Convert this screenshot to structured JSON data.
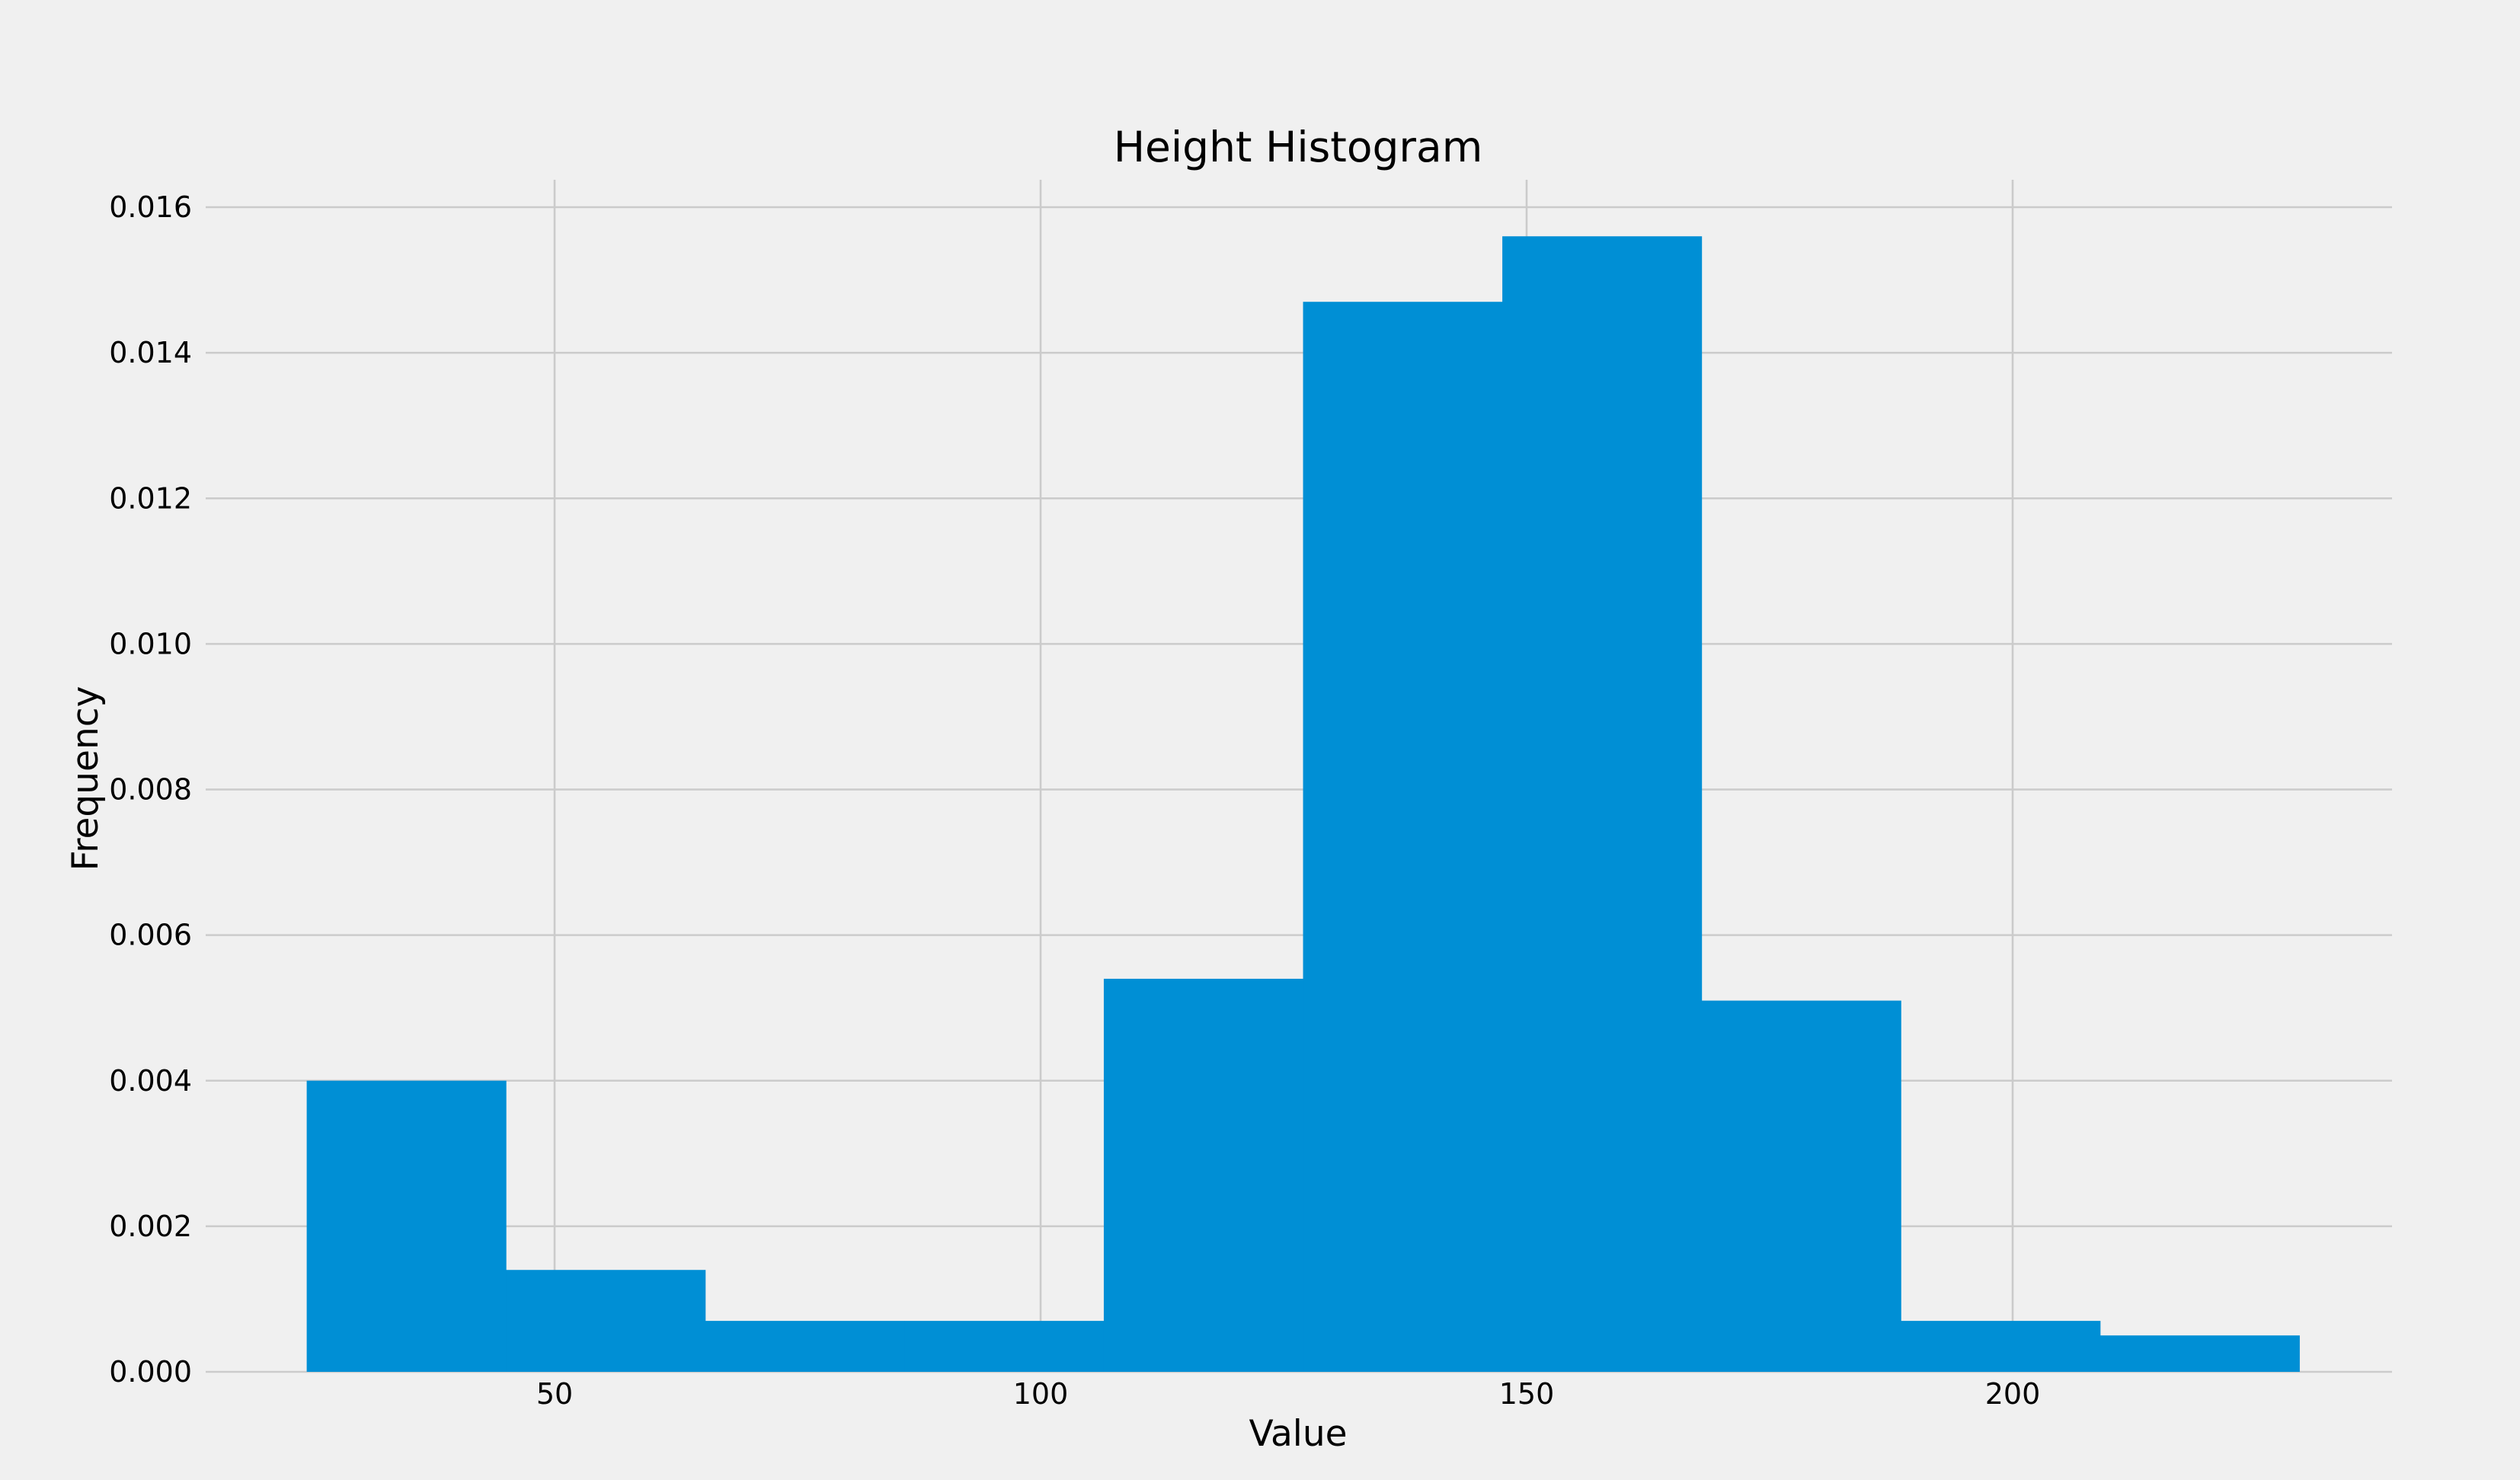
{
  "chart_data": {
    "type": "bar",
    "title": "Height Histogram",
    "xlabel": "Value",
    "ylabel": "Frequency",
    "xlim": [
      14,
      244
    ],
    "ylim": [
      0,
      0.0164
    ],
    "xticks": [
      50,
      100,
      150,
      200
    ],
    "yticks": [
      0.0,
      0.002,
      0.004,
      0.006,
      0.008,
      0.01,
      0.012,
      0.014,
      0.016
    ],
    "ytick_labels": [
      "0.000",
      "0.002",
      "0.004",
      "0.006",
      "0.008",
      "0.010",
      "0.012",
      "0.014",
      "0.016"
    ],
    "xtick_labels": [
      "50",
      "100",
      "150",
      "200"
    ],
    "bin_edges": [
      24.5,
      45.0,
      65.5,
      86.0,
      106.5,
      127.0,
      147.5,
      168.0,
      188.5,
      209.0,
      229.5
    ],
    "values": [
      0.004,
      0.0014,
      0.0007,
      0.0007,
      0.0054,
      0.0147,
      0.0156,
      0.0051,
      0.0007,
      0.0005
    ],
    "grid": true,
    "colors": {
      "bar": "#008fd5",
      "background": "#f0f0f0",
      "grid": "#cbcbcb"
    }
  }
}
